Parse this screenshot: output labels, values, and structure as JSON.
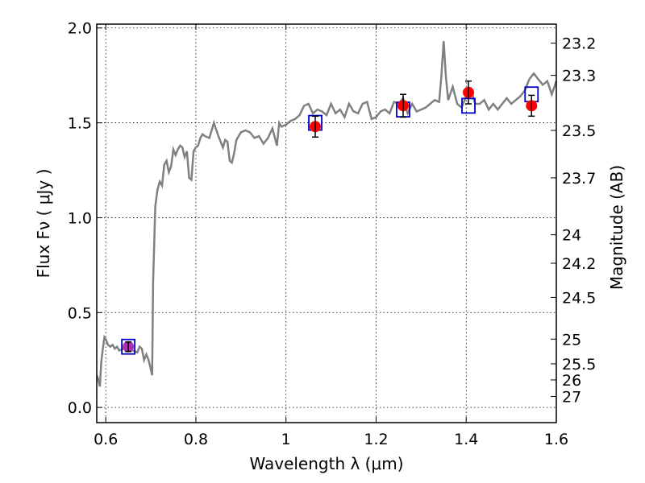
{
  "chart_data": {
    "type": "line",
    "xlabel": "Wavelength  λ (μm)",
    "ylabel": "Flux  Fν  ( μJy )",
    "y2label": "Magnitude (AB)",
    "xlim": [
      0.58,
      1.6
    ],
    "ylim": [
      -0.08,
      2.02
    ],
    "grid": true,
    "x_ticks": [
      {
        "value": 0.6,
        "label": "0.6"
      },
      {
        "value": 0.8,
        "label": "0.8"
      },
      {
        "value": 1.0,
        "label": "1"
      },
      {
        "value": 1.2,
        "label": "1.2"
      },
      {
        "value": 1.4,
        "label": "1.4"
      },
      {
        "value": 1.6,
        "label": "1.6"
      }
    ],
    "y_ticks": [
      {
        "value": 0.0,
        "label": "0.0"
      },
      {
        "value": 0.5,
        "label": "0.5"
      },
      {
        "value": 1.0,
        "label": "1.0"
      },
      {
        "value": 1.5,
        "label": "1.5"
      },
      {
        "value": 2.0,
        "label": "2.0"
      }
    ],
    "mag_ticks": [
      {
        "label": "23.2",
        "flux": 1.92
      },
      {
        "label": "23.3",
        "flux": 1.75
      },
      {
        "label": "23.5",
        "flux": 1.46
      },
      {
        "label": "23.7",
        "flux": 1.21
      },
      {
        "label": "24",
        "flux": 0.91
      },
      {
        "label": "24.2",
        "flux": 0.76
      },
      {
        "label": "24.5",
        "flux": 0.58
      },
      {
        "label": "25",
        "flux": 0.36
      },
      {
        "label": "25.5",
        "flux": 0.23
      },
      {
        "label": "26",
        "flux": 0.145
      },
      {
        "label": "27",
        "flux": 0.058
      }
    ],
    "spectrum": {
      "color": "#808080",
      "x": [
        0.58,
        0.583,
        0.587,
        0.59,
        0.593,
        0.597,
        0.6,
        0.605,
        0.61,
        0.615,
        0.62,
        0.625,
        0.63,
        0.64,
        0.65,
        0.66,
        0.67,
        0.675,
        0.68,
        0.685,
        0.69,
        0.695,
        0.7,
        0.703,
        0.705,
        0.71,
        0.715,
        0.72,
        0.725,
        0.73,
        0.735,
        0.74,
        0.745,
        0.75,
        0.755,
        0.76,
        0.765,
        0.77,
        0.775,
        0.78,
        0.785,
        0.79,
        0.795,
        0.8,
        0.805,
        0.81,
        0.815,
        0.82,
        0.83,
        0.84,
        0.85,
        0.86,
        0.865,
        0.87,
        0.875,
        0.88,
        0.885,
        0.89,
        0.9,
        0.91,
        0.92,
        0.93,
        0.94,
        0.95,
        0.96,
        0.97,
        0.98,
        0.985,
        0.99,
        1.0,
        1.01,
        1.02,
        1.03,
        1.04,
        1.05,
        1.06,
        1.07,
        1.08,
        1.09,
        1.1,
        1.11,
        1.12,
        1.13,
        1.14,
        1.15,
        1.16,
        1.17,
        1.18,
        1.19,
        1.2,
        1.21,
        1.22,
        1.23,
        1.24,
        1.25,
        1.26,
        1.27,
        1.28,
        1.29,
        1.3,
        1.31,
        1.32,
        1.33,
        1.34,
        1.345,
        1.35,
        1.355,
        1.36,
        1.37,
        1.38,
        1.39,
        1.4,
        1.41,
        1.42,
        1.43,
        1.44,
        1.45,
        1.46,
        1.47,
        1.48,
        1.49,
        1.5,
        1.51,
        1.52,
        1.53,
        1.54,
        1.55,
        1.56,
        1.57,
        1.58,
        1.59,
        1.6
      ],
      "y": [
        0.17,
        0.15,
        0.11,
        0.24,
        0.3,
        0.37,
        0.36,
        0.33,
        0.32,
        0.33,
        0.31,
        0.32,
        0.3,
        0.31,
        0.32,
        0.3,
        0.29,
        0.32,
        0.31,
        0.25,
        0.28,
        0.25,
        0.2,
        0.17,
        0.66,
        1.06,
        1.15,
        1.19,
        1.17,
        1.28,
        1.3,
        1.24,
        1.27,
        1.36,
        1.33,
        1.36,
        1.38,
        1.37,
        1.32,
        1.35,
        1.21,
        1.2,
        1.35,
        1.37,
        1.38,
        1.42,
        1.44,
        1.43,
        1.42,
        1.5,
        1.43,
        1.37,
        1.41,
        1.4,
        1.3,
        1.29,
        1.34,
        1.41,
        1.45,
        1.46,
        1.45,
        1.42,
        1.43,
        1.39,
        1.42,
        1.47,
        1.38,
        1.5,
        1.48,
        1.49,
        1.51,
        1.52,
        1.54,
        1.59,
        1.6,
        1.55,
        1.57,
        1.56,
        1.54,
        1.6,
        1.55,
        1.57,
        1.53,
        1.6,
        1.56,
        1.55,
        1.6,
        1.61,
        1.52,
        1.53,
        1.56,
        1.57,
        1.55,
        1.61,
        1.6,
        1.63,
        1.55,
        1.6,
        1.56,
        1.57,
        1.58,
        1.6,
        1.62,
        1.61,
        1.75,
        1.93,
        1.74,
        1.62,
        1.69,
        1.6,
        1.58,
        1.64,
        1.68,
        1.6,
        1.6,
        1.62,
        1.57,
        1.6,
        1.57,
        1.6,
        1.63,
        1.6,
        1.62,
        1.64,
        1.67,
        1.73,
        1.76,
        1.73,
        1.7,
        1.72,
        1.65,
        1.72
      ]
    },
    "photometry": {
      "marker_color": "#ff0000",
      "box_color": "#0000cc",
      "errorbar_color": "#000000",
      "first_point_color": "#b030b0",
      "points": [
        {
          "x": 0.65,
          "y": 0.32,
          "err": 0.025
        },
        {
          "x": 1.065,
          "y": 1.48,
          "err": 0.055
        },
        {
          "x": 1.26,
          "y": 1.59,
          "err": 0.06
        },
        {
          "x": 1.405,
          "y": 1.66,
          "err": 0.06
        },
        {
          "x": 1.545,
          "y": 1.59,
          "err": 0.055
        }
      ],
      "model_boxes": [
        {
          "x": 0.65,
          "y": 0.32
        },
        {
          "x": 1.065,
          "y": 1.5
        },
        {
          "x": 1.26,
          "y": 1.57
        },
        {
          "x": 1.405,
          "y": 1.59
        },
        {
          "x": 1.545,
          "y": 1.65
        }
      ]
    }
  }
}
